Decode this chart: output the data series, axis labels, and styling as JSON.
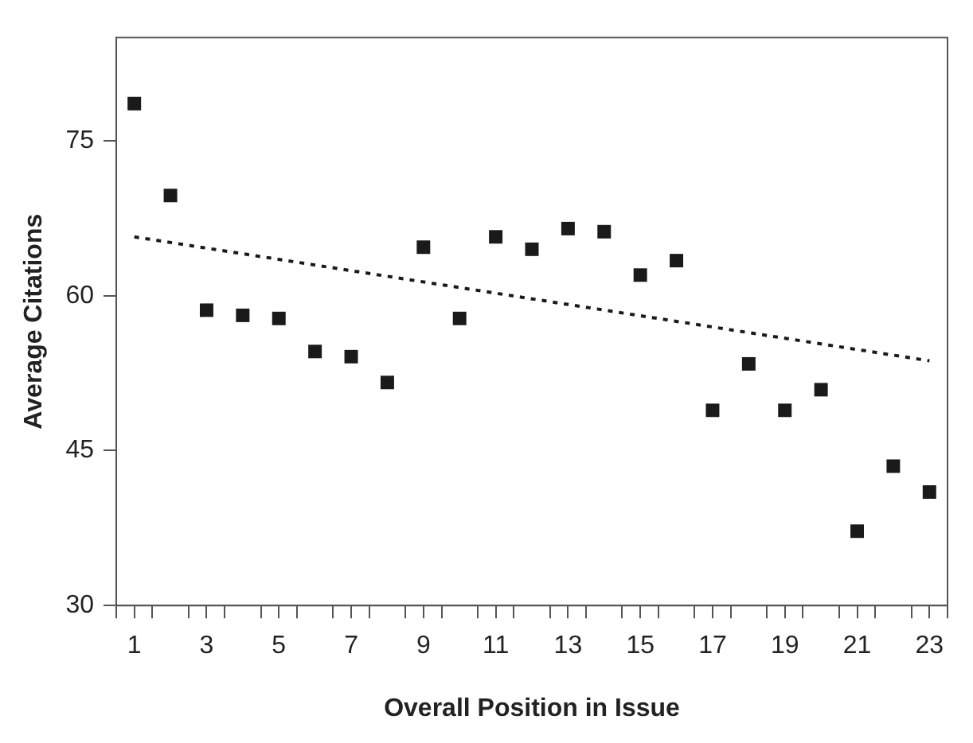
{
  "chart_data": {
    "type": "scatter",
    "xlabel": "Overall Position in Issue",
    "ylabel": "Average Citations",
    "x": [
      1,
      2,
      3,
      4,
      5,
      6,
      7,
      8,
      9,
      10,
      11,
      12,
      13,
      14,
      15,
      16,
      17,
      18,
      19,
      20,
      21,
      22,
      23
    ],
    "xlim": [
      0.5,
      23.5
    ],
    "xticks": [
      {
        "value": 0.5,
        "label": null
      },
      1,
      {
        "value": 1.5,
        "label": null
      },
      {
        "value": 2.5,
        "label": null
      },
      3,
      {
        "value": 3.5,
        "label": null
      },
      {
        "value": 4.5,
        "label": null
      },
      5,
      {
        "value": 5.5,
        "label": null
      },
      {
        "value": 6.5,
        "label": null
      },
      7,
      {
        "value": 7.5,
        "label": null
      },
      {
        "value": 8.5,
        "label": null
      },
      9,
      {
        "value": 9.5,
        "label": null
      },
      {
        "value": 10.5,
        "label": null
      },
      11,
      {
        "value": 11.5,
        "label": null
      },
      {
        "value": 12.5,
        "label": null
      },
      13,
      {
        "value": 13.5,
        "label": null
      },
      {
        "value": 14.5,
        "label": null
      },
      15,
      {
        "value": 15.5,
        "label": null
      },
      {
        "value": 16.5,
        "label": null
      },
      17,
      {
        "value": 17.5,
        "label": null
      },
      {
        "value": 18.5,
        "label": null
      },
      19,
      {
        "value": 19.5,
        "label": null
      },
      {
        "value": 20.5,
        "label": null
      },
      21,
      {
        "value": 21.5,
        "label": null
      },
      {
        "value": 22.5,
        "label": null
      },
      23,
      {
        "value": 23.5,
        "label": null
      }
    ],
    "ylim": [
      30,
      85
    ],
    "yticks": [
      30,
      45,
      60,
      75
    ],
    "grid": false,
    "legend": false,
    "series": [
      {
        "type": "scatter",
        "marker": "square",
        "color": "#1a1a1a",
        "values": [
          78.6,
          69.7,
          58.6,
          58.1,
          57.8,
          54.6,
          54.1,
          51.6,
          64.7,
          57.8,
          65.7,
          64.5,
          66.5,
          66.2,
          62.0,
          63.4,
          48.9,
          53.4,
          48.9,
          50.9,
          37.2,
          43.5,
          41.0
        ]
      },
      {
        "type": "line",
        "line_style": "dotted",
        "marker": "none",
        "color": "#1a1a1a",
        "x": [
          1,
          23
        ],
        "values": [
          65.7,
          53.7
        ]
      }
    ]
  }
}
